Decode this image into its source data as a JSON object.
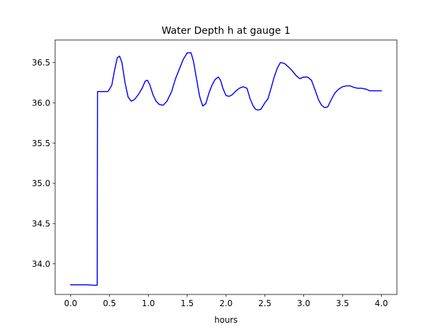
{
  "chart_data": {
    "type": "line",
    "title": "Water Depth h at gauge 1",
    "xlabel": "hours",
    "ylabel": "",
    "xlim": [
      -0.2,
      4.2
    ],
    "ylim": [
      33.62,
      36.78
    ],
    "xticks": [
      0.0,
      0.5,
      1.0,
      1.5,
      2.0,
      2.5,
      3.0,
      3.5,
      4.0
    ],
    "xtick_labels": [
      "0.0",
      "0.5",
      "1.0",
      "1.5",
      "2.0",
      "2.5",
      "3.0",
      "3.5",
      "4.0"
    ],
    "yticks": [
      34.0,
      34.5,
      35.0,
      35.5,
      36.0,
      36.5
    ],
    "ytick_labels": [
      "34.0",
      "34.5",
      "35.0",
      "35.5",
      "36.0",
      "36.5"
    ],
    "grid": false,
    "legend": "none",
    "series": [
      {
        "color": "#0000ff",
        "x": [
          0.0,
          0.1,
          0.2,
          0.3,
          0.342,
          0.346,
          0.4,
          0.48,
          0.5,
          0.53,
          0.56,
          0.6,
          0.63,
          0.66,
          0.7,
          0.74,
          0.78,
          0.82,
          0.87,
          0.92,
          0.96,
          0.99,
          1.02,
          1.06,
          1.1,
          1.14,
          1.19,
          1.24,
          1.3,
          1.35,
          1.4,
          1.45,
          1.5,
          1.55,
          1.58,
          1.62,
          1.66,
          1.7,
          1.74,
          1.78,
          1.82,
          1.86,
          1.9,
          1.93,
          1.96,
          2.0,
          2.04,
          2.08,
          2.12,
          2.17,
          2.22,
          2.27,
          2.31,
          2.35,
          2.38,
          2.41,
          2.45,
          2.5,
          2.54,
          2.58,
          2.62,
          2.66,
          2.7,
          2.75,
          2.8,
          2.85,
          2.9,
          2.95,
          3.0,
          3.05,
          3.1,
          3.15,
          3.19,
          3.23,
          3.27,
          3.31,
          3.35,
          3.4,
          3.45,
          3.5,
          3.55,
          3.6,
          3.65,
          3.7,
          3.75,
          3.8,
          3.85,
          3.9,
          3.95,
          4.0
        ],
        "y": [
          33.74,
          33.74,
          33.74,
          33.735,
          33.735,
          36.14,
          36.14,
          36.14,
          36.17,
          36.22,
          36.38,
          36.56,
          36.58,
          36.5,
          36.25,
          36.07,
          36.02,
          36.04,
          36.1,
          36.18,
          36.27,
          36.28,
          36.22,
          36.1,
          36.02,
          35.98,
          35.97,
          36.02,
          36.14,
          36.3,
          36.42,
          36.54,
          36.62,
          36.62,
          36.52,
          36.3,
          36.08,
          35.96,
          35.99,
          36.12,
          36.22,
          36.29,
          36.32,
          36.28,
          36.18,
          36.09,
          36.08,
          36.1,
          36.14,
          36.18,
          36.2,
          36.18,
          36.05,
          35.96,
          35.92,
          35.91,
          35.92,
          36.0,
          36.05,
          36.18,
          36.32,
          36.43,
          36.5,
          36.49,
          36.45,
          36.4,
          36.34,
          36.3,
          36.32,
          36.32,
          36.28,
          36.15,
          36.04,
          35.97,
          35.94,
          35.95,
          36.03,
          36.12,
          36.17,
          36.2,
          36.21,
          36.21,
          36.19,
          36.18,
          36.18,
          36.17,
          36.15,
          36.15,
          36.15,
          36.15
        ]
      }
    ]
  }
}
